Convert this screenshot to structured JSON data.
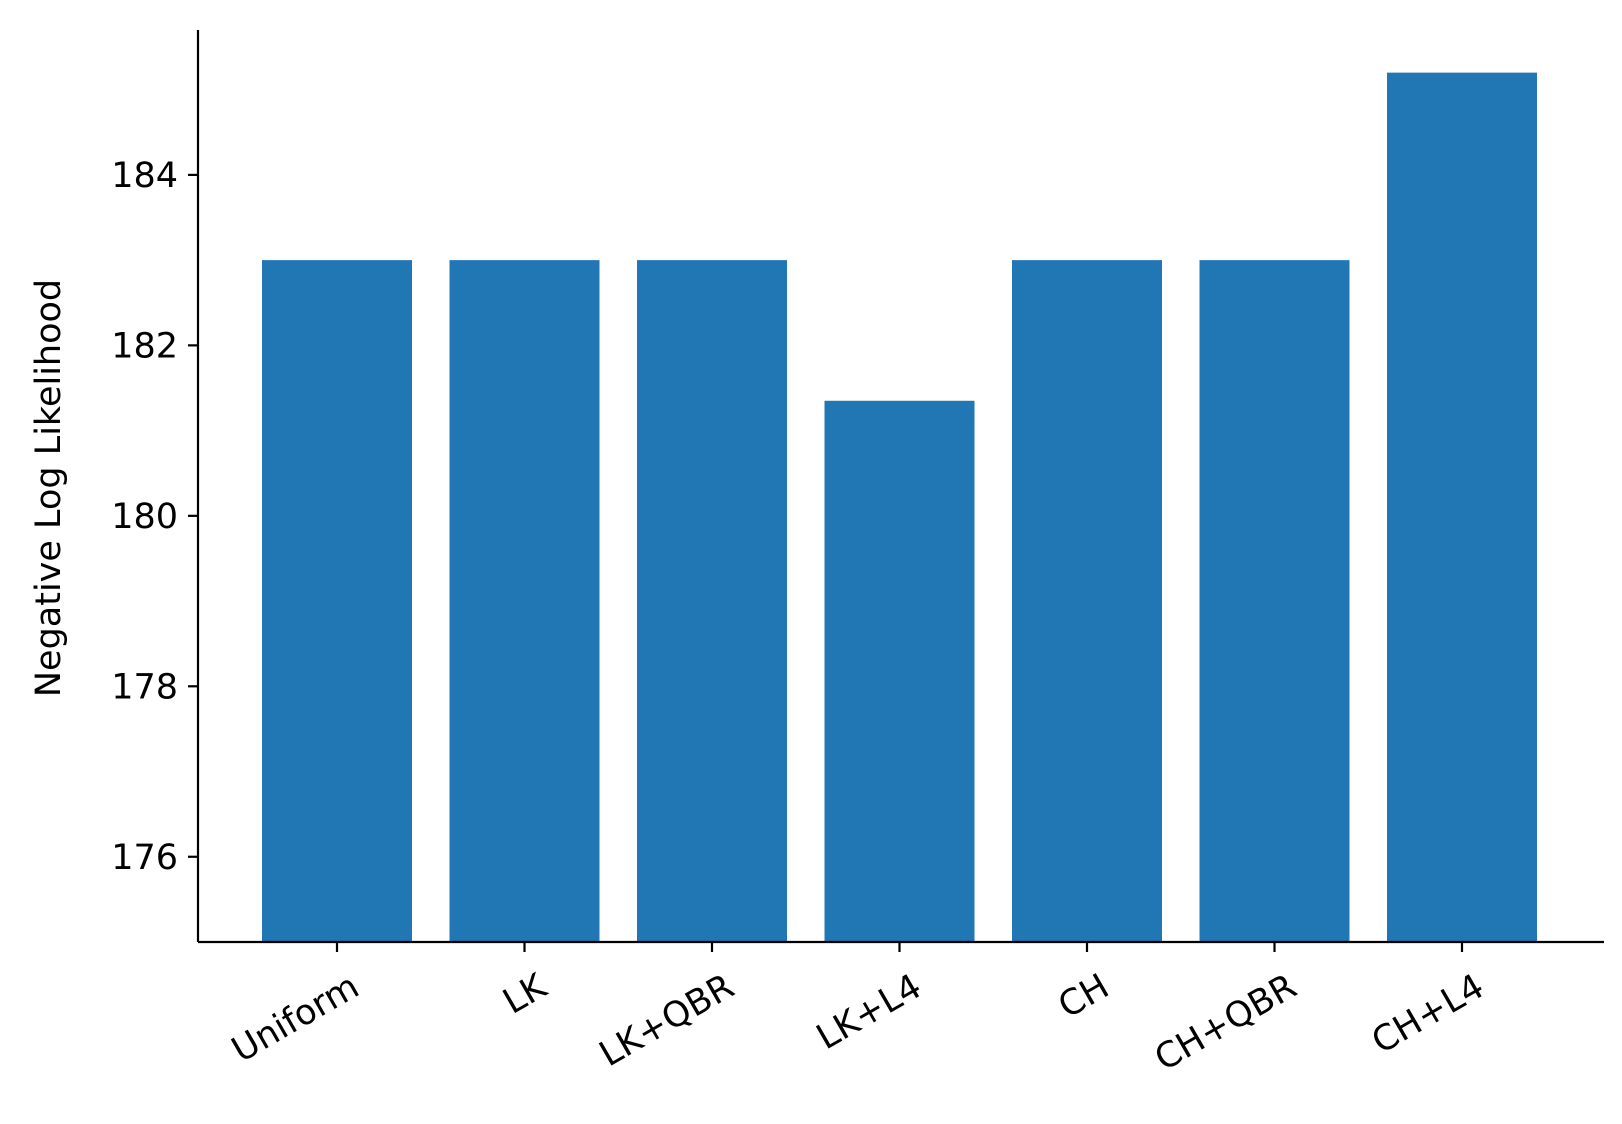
{
  "chart_data": {
    "type": "bar",
    "title": "",
    "xlabel": "",
    "ylabel": "Negative Log Likelihood",
    "categories": [
      "Uniform",
      "LK",
      "LK+QBR",
      "LK+L4",
      "CH",
      "CH+QBR",
      "CH+L4"
    ],
    "values": [
      183.0,
      183.0,
      183.0,
      181.35,
      183.0,
      183.0,
      185.2
    ],
    "ylim": [
      175.0,
      185.7
    ],
    "yticks": [
      "176",
      "178",
      "180",
      "182",
      "184"
    ],
    "grid": false,
    "legend": "none",
    "bar_color": "#2177b4",
    "axis_color": "#000000"
  }
}
